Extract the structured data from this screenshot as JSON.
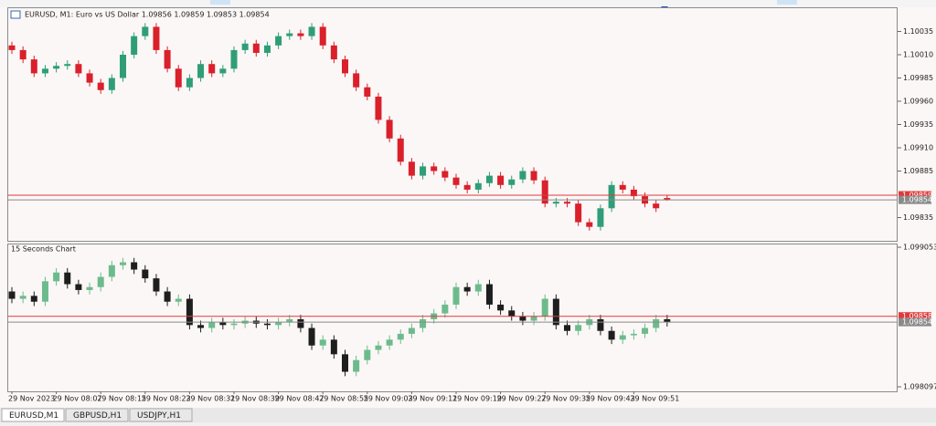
{
  "chart_data": [
    {
      "type": "candlestick",
      "title": "EURUSD, M1: Euro vs US Dollar 1.09856 1.09859 1.09853 1.09854",
      "up_color": "#2f9e78",
      "down_color": "#d9202b",
      "ylim": [
        1.0981,
        1.1006
      ],
      "yticks": [
        1.10035,
        {
          "value": 1.1001,
          "label": "1.10010"
        },
        1.09985,
        {
          "value": 1.0996,
          "label": "1.09960"
        },
        1.09935,
        {
          "value": 1.0991,
          "label": "1.09910"
        },
        1.09885,
        1.09835
      ],
      "price_lines": [
        {
          "value": 1.09859,
          "color": "#e03a3a"
        },
        {
          "value": 1.09854,
          "color": "#8a8a8a"
        }
      ],
      "open": [
        1.1002,
        1.10015,
        1.10005,
        1.0999,
        1.09995,
        1.09998,
        1.1,
        1.0999,
        1.0998,
        1.09972,
        1.09985,
        1.1001,
        1.1003,
        1.1004,
        1.10015,
        1.09995,
        1.09975,
        1.09985,
        1.1,
        1.0999,
        1.09995,
        1.10015,
        1.10022,
        1.10012,
        1.1002,
        1.1003,
        1.10033,
        1.1003,
        1.1004,
        1.1002,
        1.10005,
        1.0999,
        1.09975,
        1.09965,
        1.0994,
        1.0992,
        1.09895,
        1.0988,
        1.0989,
        1.09885,
        1.09878,
        1.0987,
        1.09865,
        1.09872,
        1.0988,
        1.0987,
        1.09876,
        1.09885,
        1.09875,
        1.0985,
        1.09852,
        1.0985,
        1.0983,
        1.09825,
        1.09845,
        1.0987,
        1.09865,
        1.09858,
        1.0985,
        1.09856
      ],
      "high": [
        1.10024,
        1.10019,
        1.10009,
        1.09999,
        1.10002,
        1.10004,
        1.10004,
        1.09994,
        1.09984,
        1.09989,
        1.10014,
        1.10034,
        1.10044,
        1.10044,
        1.10019,
        1.09999,
        1.09989,
        1.10004,
        1.10004,
        1.09999,
        1.10019,
        1.10026,
        1.10026,
        1.10024,
        1.10034,
        1.10037,
        1.10037,
        1.10044,
        1.10044,
        1.10024,
        1.10009,
        1.09994,
        1.09979,
        1.09969,
        1.09944,
        1.09924,
        1.09899,
        1.09894,
        1.09894,
        1.09889,
        1.09882,
        1.09874,
        1.09876,
        1.09884,
        1.09884,
        1.0988,
        1.09889,
        1.09889,
        1.09879,
        1.09856,
        1.09856,
        1.09854,
        1.09834,
        1.09849,
        1.09874,
        1.09874,
        1.09869,
        1.09862,
        1.09854,
        1.09859
      ],
      "low": [
        1.10011,
        1.10001,
        1.09986,
        1.09986,
        1.09991,
        1.09994,
        1.09986,
        1.09976,
        1.09968,
        1.09968,
        1.09981,
        1.10006,
        1.10026,
        1.10011,
        1.09991,
        1.09971,
        1.09971,
        1.09981,
        1.09986,
        1.09986,
        1.09991,
        1.10011,
        1.10008,
        1.10008,
        1.10016,
        1.10026,
        1.10026,
        1.10026,
        1.10016,
        1.10001,
        1.09986,
        1.09971,
        1.09961,
        1.09936,
        1.09916,
        1.09891,
        1.09876,
        1.09876,
        1.09881,
        1.09874,
        1.09866,
        1.09861,
        1.09861,
        1.09868,
        1.09866,
        1.09866,
        1.09872,
        1.09871,
        1.09846,
        1.09846,
        1.09846,
        1.09826,
        1.09821,
        1.09821,
        1.09841,
        1.09861,
        1.09854,
        1.09846,
        1.09841,
        1.09853
      ],
      "close": [
        1.10015,
        1.10005,
        1.0999,
        1.09995,
        1.09998,
        1.1,
        1.0999,
        1.0998,
        1.09972,
        1.09985,
        1.1001,
        1.1003,
        1.1004,
        1.10015,
        1.09995,
        1.09975,
        1.09985,
        1.1,
        1.0999,
        1.09995,
        1.10015,
        1.10022,
        1.10012,
        1.1002,
        1.1003,
        1.10033,
        1.1003,
        1.1004,
        1.1002,
        1.10005,
        1.0999,
        1.09975,
        1.09965,
        1.0994,
        1.0992,
        1.09895,
        1.0988,
        1.0989,
        1.09885,
        1.09878,
        1.0987,
        1.09865,
        1.09872,
        1.0988,
        1.0987,
        1.09876,
        1.09885,
        1.09875,
        1.0985,
        1.09852,
        1.0985,
        1.0983,
        1.09825,
        1.09845,
        1.0987,
        1.09865,
        1.09858,
        1.0985,
        1.09845,
        1.09854
      ]
    },
    {
      "type": "candlestick",
      "title": "15 Seconds Chart",
      "up_color": "#6dbb8c",
      "down_color": "#1e1e1e",
      "ylim": [
        1.098066,
        1.099072
      ],
      "yticks": [
        1.099053,
        1.098097
      ],
      "price_lines": [
        {
          "value": 1.09858,
          "label": "1.098580",
          "color": "#e03a3a"
        },
        {
          "value": 1.09854,
          "label": "1.098540",
          "color": "#8a8a8a"
        }
      ],
      "categories": [
        "29 Nov 2023",
        null,
        null,
        null,
        "29 Nov 08:07",
        null,
        null,
        null,
        "29 Nov 08:15",
        null,
        null,
        null,
        "29 Nov 08:23",
        null,
        null,
        null,
        "29 Nov 08:31",
        null,
        null,
        null,
        "29 Nov 08:39",
        null,
        null,
        null,
        "29 Nov 08:47",
        null,
        null,
        null,
        "29 Nov 08:55",
        null,
        null,
        null,
        "29 Nov 09:03",
        null,
        null,
        null,
        "29 Nov 09:11",
        null,
        null,
        null,
        "29 Nov 09:19",
        null,
        null,
        null,
        "29 Nov 09:27",
        null,
        null,
        null,
        "29 Nov 09:35",
        null,
        null,
        null,
        "29 Nov 09:43",
        null,
        null,
        null,
        "29 Nov 09:51",
        null,
        null,
        null
      ],
      "open": [
        1.09875,
        1.0987,
        1.09872,
        1.09868,
        1.09882,
        1.09888,
        1.0988,
        1.09876,
        1.09878,
        1.09885,
        1.09893,
        1.09895,
        1.0989,
        1.09884,
        1.09875,
        1.09868,
        1.0987,
        1.09852,
        1.0985,
        1.09854,
        1.09852,
        1.09853,
        1.09855,
        1.09853,
        1.09852,
        1.09854,
        1.09856,
        1.0985,
        1.09838,
        1.09842,
        1.09832,
        1.0982,
        1.09828,
        1.09835,
        1.09838,
        1.09842,
        1.09846,
        1.0985,
        1.09856,
        1.0986,
        1.09866,
        1.09878,
        1.09875,
        1.0988,
        1.09866,
        1.09862,
        1.09858,
        1.09855,
        1.09858,
        1.0987,
        1.09852,
        1.09848,
        1.09852,
        1.09856,
        1.09848,
        1.09842,
        1.09845,
        1.09846,
        1.0985,
        1.09856
      ],
      "high": [
        1.09878,
        1.09875,
        1.09875,
        1.09885,
        1.09891,
        1.09891,
        1.09883,
        1.09881,
        1.09888,
        1.09896,
        1.09898,
        1.09898,
        1.09893,
        1.09887,
        1.09878,
        1.09873,
        1.09873,
        1.09855,
        1.09857,
        1.09857,
        1.09856,
        1.09858,
        1.09858,
        1.09856,
        1.09857,
        1.09859,
        1.09859,
        1.09853,
        1.09845,
        1.09845,
        1.09835,
        1.09831,
        1.09838,
        1.09841,
        1.09845,
        1.09849,
        1.09853,
        1.09859,
        1.09863,
        1.09869,
        1.09881,
        1.09881,
        1.09883,
        1.09883,
        1.09869,
        1.09865,
        1.09861,
        1.09861,
        1.09873,
        1.09873,
        1.09855,
        1.09855,
        1.09859,
        1.09859,
        1.09851,
        1.09848,
        1.09849,
        1.09853,
        1.09859,
        1.09859
      ],
      "low": [
        1.09867,
        1.09867,
        1.09865,
        1.09865,
        1.09879,
        1.09877,
        1.09873,
        1.09873,
        1.09875,
        1.09882,
        1.0989,
        1.09887,
        1.09881,
        1.09872,
        1.09865,
        1.09865,
        1.09849,
        1.09847,
        1.09847,
        1.09849,
        1.09849,
        1.0985,
        1.0985,
        1.09849,
        1.09849,
        1.09851,
        1.09847,
        1.09835,
        1.09835,
        1.09829,
        1.09817,
        1.09817,
        1.09825,
        1.09832,
        1.09835,
        1.09839,
        1.09843,
        1.09847,
        1.09853,
        1.09857,
        1.09863,
        1.09872,
        1.09872,
        1.09863,
        1.09859,
        1.09855,
        1.09852,
        1.09852,
        1.09855,
        1.09849,
        1.09845,
        1.09845,
        1.09849,
        1.09845,
        1.09839,
        1.09839,
        1.09842,
        1.09843,
        1.09847,
        1.09851
      ],
      "close": [
        1.0987,
        1.09872,
        1.09868,
        1.09882,
        1.09888,
        1.0988,
        1.09876,
        1.09878,
        1.09885,
        1.09893,
        1.09895,
        1.0989,
        1.09884,
        1.09875,
        1.09868,
        1.0987,
        1.09852,
        1.0985,
        1.09854,
        1.09852,
        1.09853,
        1.09855,
        1.09853,
        1.09852,
        1.09854,
        1.09856,
        1.0985,
        1.09838,
        1.09842,
        1.09832,
        1.0982,
        1.09828,
        1.09835,
        1.09838,
        1.09842,
        1.09846,
        1.0985,
        1.09856,
        1.0986,
        1.09866,
        1.09878,
        1.09875,
        1.0988,
        1.09866,
        1.09862,
        1.09858,
        1.09855,
        1.09858,
        1.0987,
        1.09852,
        1.09848,
        1.09852,
        1.09856,
        1.09848,
        1.09842,
        1.09845,
        1.09846,
        1.0985,
        1.09856,
        1.09854
      ]
    }
  ],
  "tabs": [
    "EURUSD,M1",
    "GBPUSD,H1",
    "USDJPY,H1"
  ]
}
